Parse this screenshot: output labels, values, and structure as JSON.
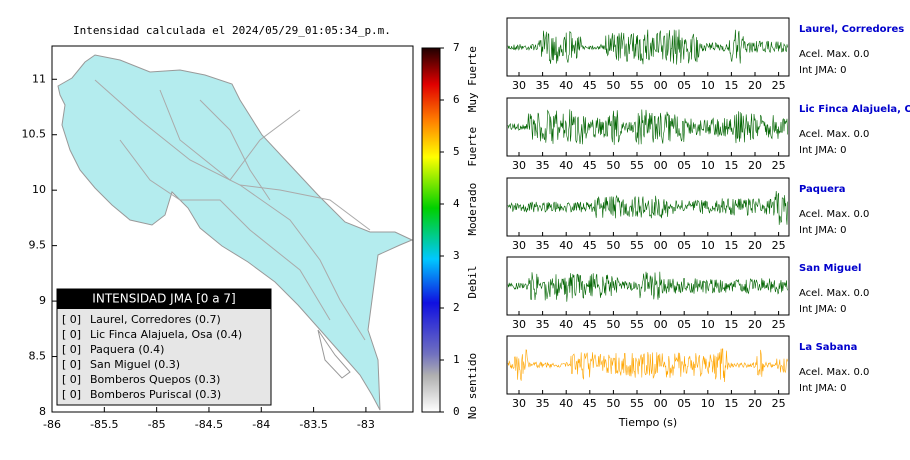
{
  "map": {
    "title": "Intensidad calculada el 2024/05/29_01:05:34_p.m.",
    "xlim": [
      -86,
      -82.55
    ],
    "xticks": [
      -86,
      -85.5,
      -85,
      -84.5,
      -84,
      -83.5,
      -83
    ],
    "ylim": [
      8,
      11.3
    ],
    "yticks": [
      8,
      8.5,
      9,
      9.5,
      10,
      10.5,
      11
    ],
    "fill_color": "#b4ecee",
    "legend": {
      "title": "INTENSIDAD JMA [0 a 7]",
      "entries": [
        {
          "intensity": "[ 0]",
          "station": "Laurel, Corredores (0.7)"
        },
        {
          "intensity": "[ 0]",
          "station": "Lic Finca Alajuela, Osa (0.4)"
        },
        {
          "intensity": "[ 0]",
          "station": "Paquera (0.4)"
        },
        {
          "intensity": "[ 0]",
          "station": "San Miguel (0.3)"
        },
        {
          "intensity": "[ 0]",
          "station": "Bomberos Quepos (0.3)"
        },
        {
          "intensity": "[ 0]",
          "station": "Bomberos Puriscal (0.3)"
        }
      ]
    }
  },
  "colorbar": {
    "lim": [
      0,
      7
    ],
    "ticks": [
      0,
      1,
      2,
      3,
      4,
      5,
      6,
      7
    ],
    "labels": [
      {
        "value": 0.5,
        "label": "No sentido"
      },
      {
        "value": 2.5,
        "label": "Debil"
      },
      {
        "value": 3.9,
        "label": "Moderado"
      },
      {
        "value": 5.1,
        "label": "Fuerte"
      },
      {
        "value": 6.4,
        "label": "Muy Fuerte"
      }
    ]
  },
  "waveforms": {
    "xlabel": "Tiempo (s)",
    "xticks": [
      "30",
      "35",
      "40",
      "45",
      "50",
      "55",
      "00",
      "05",
      "10",
      "15",
      "20",
      "25"
    ],
    "stations": [
      {
        "name": "Laurel, Corredores",
        "acel": "Acel. Max. 0.0",
        "jma": "Int JMA: 0",
        "color": "#006400"
      },
      {
        "name": "Lic Finca Alajuela, Osa",
        "acel": "Acel. Max. 0.0",
        "jma": "Int JMA: 0",
        "color": "#006400"
      },
      {
        "name": "Paquera",
        "acel": "Acel. Max. 0.0",
        "jma": "Int JMA: 0",
        "color": "#006400"
      },
      {
        "name": "San Miguel",
        "acel": "Acel. Max. 0.0",
        "jma": "Int JMA: 0",
        "color": "#006400"
      },
      {
        "name": "La Sabana",
        "acel": "Acel. Max. 0.0",
        "jma": "Int JMA: 0",
        "color": "#ffa500"
      }
    ]
  }
}
